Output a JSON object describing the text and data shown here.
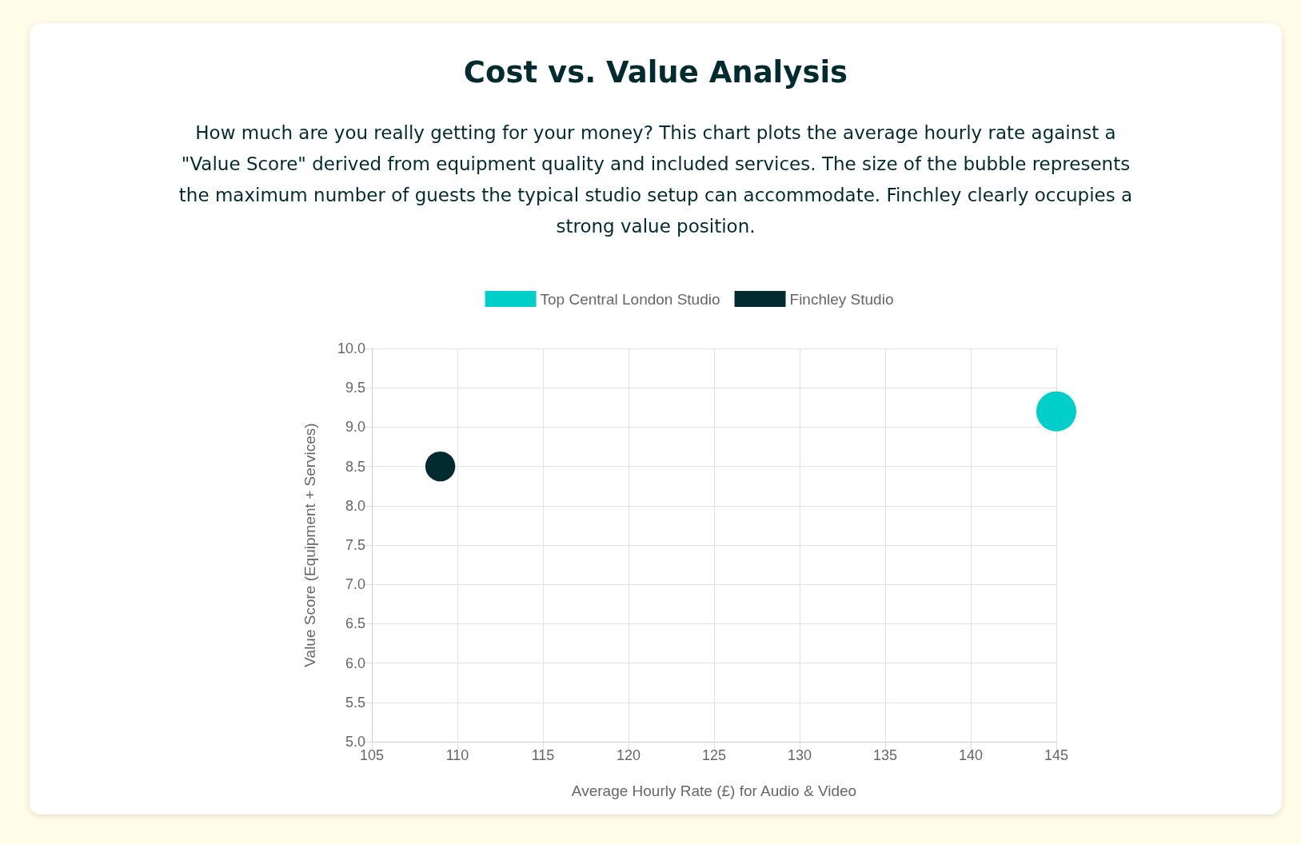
{
  "chart_data": {
    "type": "bubble",
    "title": "Cost vs. Value Analysis",
    "subtitle": "How much are you really getting for your money? This chart plots the average hourly rate against a \"Value Score\" derived from equipment quality and included services. The size of the bubble represents the maximum number of guests the typical studio setup can accommodate. Finchley clearly occupies a strong value position.",
    "xlabel": "Average Hourly Rate (£) for Audio & Video",
    "ylabel": "Value Score (Equipment + Services)",
    "series": [
      {
        "name": "Top Central London Studio",
        "color": "#00cec9",
        "x": [
          145
        ],
        "values": [
          9.2
        ],
        "sizes": [
          1
        ]
      },
      {
        "name": "Finchley Studio",
        "color": "#022b30",
        "x": [
          109
        ],
        "values": [
          8.5
        ],
        "sizes": [
          0.56
        ]
      }
    ],
    "xlim": [
      105,
      145
    ],
    "xticks": [
      105,
      110,
      115,
      120,
      125,
      130,
      135,
      140,
      145
    ],
    "ylim": [
      5,
      10
    ],
    "yticks": [
      {
        "value": 5,
        "label": "5.0"
      },
      5.5,
      {
        "value": 6,
        "label": "6.0"
      },
      6.5,
      {
        "value": 7,
        "label": "7.0"
      },
      7.5,
      {
        "value": 8,
        "label": "8.0"
      },
      8.5,
      {
        "value": 9,
        "label": "9.0"
      },
      9.5,
      {
        "value": 10,
        "label": "10.0"
      }
    ],
    "grid": true,
    "legend": "top"
  }
}
